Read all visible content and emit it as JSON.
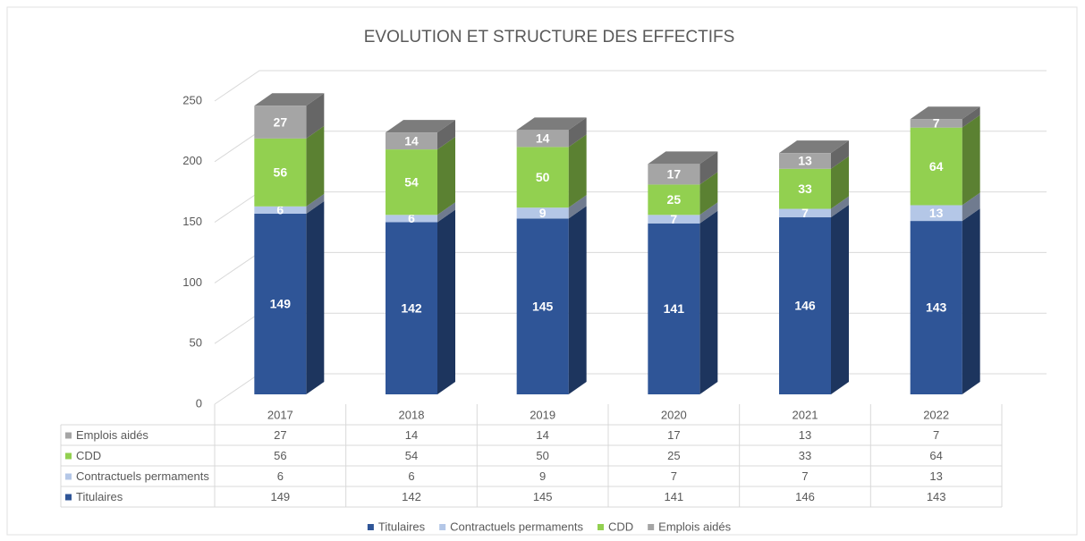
{
  "chart_data": {
    "type": "bar3d_stacked",
    "title": "EVOLUTION ET STRUCTURE DES EFFECTIFS",
    "categories": [
      "2017",
      "2018",
      "2019",
      "2020",
      "2021",
      "2022"
    ],
    "series": [
      {
        "name": "Titulaires",
        "color": "#2f5597",
        "values": [
          149,
          142,
          145,
          141,
          146,
          143
        ]
      },
      {
        "name": "Contractuels permaments",
        "color": "#b4c7e7",
        "values": [
          6,
          6,
          9,
          7,
          7,
          13
        ]
      },
      {
        "name": "CDD",
        "color": "#92d050",
        "values": [
          56,
          54,
          50,
          25,
          33,
          64
        ]
      },
      {
        "name": "Emplois aidés",
        "color": "#a5a5a5",
        "values": [
          27,
          14,
          14,
          17,
          13,
          7
        ]
      }
    ],
    "ylim": [
      0,
      250
    ],
    "yticks": [
      0,
      50,
      100,
      150,
      200,
      250
    ],
    "grid": true,
    "legend": "bottom",
    "data_table": true
  }
}
